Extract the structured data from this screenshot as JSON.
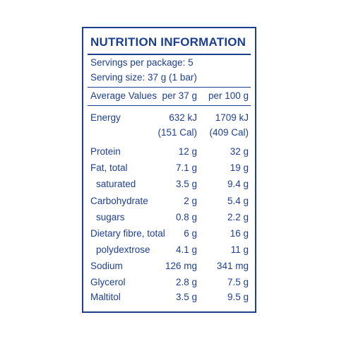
{
  "title": "NUTRITION INFORMATION",
  "servings_per_package": "Servings per package: 5",
  "serving_size": "Serving size: 37 g (1 bar)",
  "header": {
    "label": "Average Values",
    "col1": "per 37 g",
    "col2": "per 100 g"
  },
  "energy": {
    "label": "Energy",
    "col1_kj": "632 kJ",
    "col2_kj": "1709 kJ",
    "col1_cal": "(151 Cal)",
    "col2_cal": "(409 Cal)"
  },
  "rows": [
    {
      "label": "Protein",
      "col1": "12 g",
      "col2": "32 g"
    },
    {
      "label": "Fat, total",
      "col1": "7.1 g",
      "col2": "19 g"
    },
    {
      "label": "saturated",
      "col1": "3.5 g",
      "col2": "9.4 g"
    },
    {
      "label": "Carbohydrate",
      "col1": "2 g",
      "col2": "5.4 g"
    },
    {
      "label": "sugars",
      "col1": "0.8 g",
      "col2": "2.2 g"
    },
    {
      "label": "Dietary fibre, total",
      "col1": "6 g",
      "col2": "16 g"
    },
    {
      "label": "polydextrose",
      "col1": "4.1 g",
      "col2": "11 g"
    },
    {
      "label": "Sodium",
      "col1": "126 mg",
      "col2": "341 mg"
    },
    {
      "label": "Glycerol",
      "col1": "2.8 g",
      "col2": "7.5 g"
    },
    {
      "label": "Maltitol",
      "col1": "3.5 g",
      "col2": "9.5 g"
    }
  ],
  "colors": {
    "text": "#1d3f91",
    "background": "#ffffff"
  }
}
